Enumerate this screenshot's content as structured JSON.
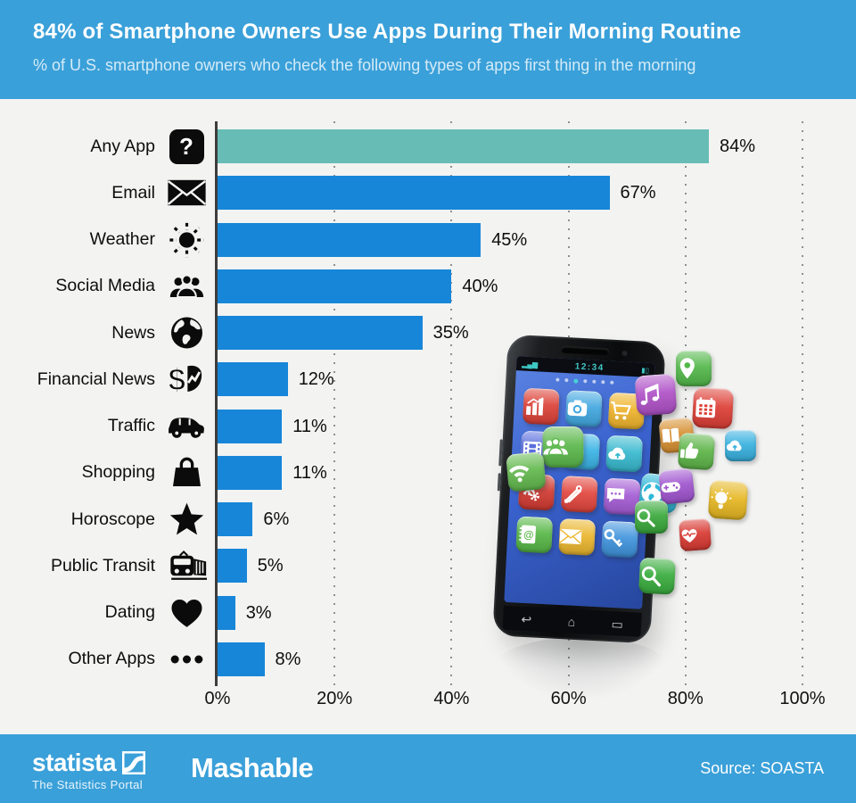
{
  "header": {
    "title": "84% of Smartphone Owners Use Apps During Their Morning Routine",
    "subtitle": "% of U.S. smartphone owners who check the following types of apps first thing in the morning"
  },
  "chart_data": {
    "type": "bar",
    "orientation": "horizontal",
    "title": "84% of Smartphone Owners Use Apps During Their Morning Routine",
    "categories": [
      "Any App",
      "Email",
      "Weather",
      "Social Media",
      "News",
      "Financial News",
      "Traffic",
      "Shopping",
      "Horoscope",
      "Public Transit",
      "Dating",
      "Other Apps"
    ],
    "values": [
      84,
      67,
      45,
      40,
      35,
      12,
      11,
      11,
      6,
      5,
      3,
      8
    ],
    "value_labels": [
      "84%",
      "67%",
      "45%",
      "40%",
      "35%",
      "12%",
      "11%",
      "11%",
      "6%",
      "5%",
      "3%",
      "8%"
    ],
    "category_icons": [
      "question-mark",
      "envelope",
      "sun",
      "people",
      "globe",
      "dollar-chart",
      "car",
      "shopping-bag",
      "star",
      "train",
      "heart",
      "ellipsis-dots"
    ],
    "x_ticks": [
      "0%",
      "20%",
      "40%",
      "60%",
      "80%",
      "100%"
    ],
    "x_tick_values": [
      0,
      20,
      40,
      60,
      80,
      100
    ],
    "xlim": [
      0,
      100
    ],
    "grid": "dotted vertical gridlines",
    "legend": "none",
    "bar_color_default": "#1786d8",
    "bar_color_highlight": "#67bdb5",
    "highlight_index": 0
  },
  "illustration": {
    "phone_clock": "12:34",
    "screen_tiles": [
      {
        "icon": "bars",
        "color": "#dc4238"
      },
      {
        "icon": "camera",
        "color": "#41a7e0"
      },
      {
        "icon": "cart",
        "color": "#efb42c"
      },
      {
        "icon": "video",
        "color": "#5a6ede"
      },
      {
        "icon": "compass",
        "color": "#3bb4e6"
      },
      {
        "icon": "cloud",
        "color": "#38b9cf"
      },
      {
        "icon": "gears",
        "color": "#d23b32"
      },
      {
        "icon": "tools",
        "color": "#e2463e"
      },
      {
        "icon": "chat",
        "color": "#a45cd4"
      },
      {
        "icon": "contacts",
        "color": "#57b747"
      },
      {
        "icon": "envelope",
        "color": "#eab62e"
      },
      {
        "icon": "keys",
        "color": "#3f93dc"
      }
    ],
    "overlay_tiles": [
      {
        "icon": "people",
        "color": "#5cb84c"
      },
      {
        "icon": "wifi",
        "color": "#63b94e"
      },
      {
        "icon": "globe",
        "color": "#2fb9d8"
      },
      {
        "icon": "magnifier",
        "color": "#3aad3e"
      }
    ],
    "flying_tiles": [
      {
        "icon": "location-pin",
        "color": "#53b84a"
      },
      {
        "icon": "music",
        "color": "#b052c8"
      },
      {
        "icon": "calendar",
        "color": "#dd3f36"
      },
      {
        "icon": "book",
        "color": "#d79032"
      },
      {
        "icon": "thumbs-up",
        "color": "#5eb549"
      },
      {
        "icon": "cloud",
        "color": "#38b1df"
      },
      {
        "icon": "gamepad",
        "color": "#a055cf"
      },
      {
        "icon": "magnifier",
        "color": "#3aa93c"
      },
      {
        "icon": "lightbulb",
        "color": "#e6b722"
      },
      {
        "icon": "heartbeat",
        "color": "#d93a33"
      }
    ]
  },
  "footer": {
    "statista_logo": "statista",
    "statista_tagline": "The Statistics Portal",
    "mashable_logo": "Mashable",
    "source": "Source: SOASTA"
  },
  "colors": {
    "banner": "#3aa0d9",
    "background": "#f3f3f2",
    "bar_blue": "#1786d8",
    "bar_teal": "#67bdb5",
    "axis": "#3d3d3d"
  }
}
